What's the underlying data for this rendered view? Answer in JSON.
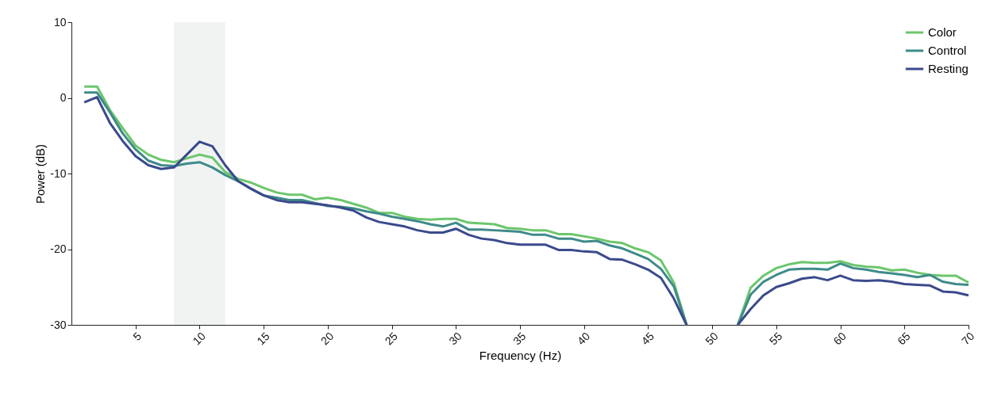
{
  "chart_data": {
    "type": "line",
    "xlabel": "Frequency (Hz)",
    "ylabel": "Power (dB)",
    "x": [
      1,
      2,
      3,
      4,
      5,
      6,
      7,
      8,
      9,
      10,
      11,
      12,
      13,
      14,
      15,
      16,
      17,
      18,
      19,
      20,
      21,
      22,
      23,
      24,
      25,
      26,
      27,
      28,
      29,
      30,
      31,
      32,
      33,
      34,
      35,
      36,
      37,
      38,
      39,
      40,
      41,
      42,
      43,
      44,
      45,
      46,
      47,
      48,
      49,
      50,
      51,
      52,
      53,
      54,
      55,
      56,
      57,
      58,
      59,
      60,
      61,
      62,
      63,
      64,
      65,
      66,
      67,
      68,
      69,
      70
    ],
    "xlim": [
      0,
      70
    ],
    "xticks": [
      5,
      10,
      15,
      20,
      25,
      30,
      35,
      40,
      45,
      50,
      55,
      60,
      65,
      70
    ],
    "ylim": [
      -30,
      10
    ],
    "yticks": [
      -30,
      -20,
      -10,
      0,
      10
    ],
    "grid": false,
    "legend": "top right",
    "bands": [
      {
        "axis": "x",
        "from": 8,
        "to": 12,
        "color": "#f1f3f2"
      }
    ],
    "series": [
      {
        "name": "Color",
        "color": "#6cc66c",
        "values": [
          1.5,
          1.5,
          -1.6,
          -4.0,
          -6.3,
          -7.5,
          -8.2,
          -8.5,
          -8.0,
          -7.5,
          -7.9,
          -9.8,
          -10.7,
          -11.2,
          -11.9,
          -12.5,
          -12.8,
          -12.8,
          -13.4,
          -13.2,
          -13.5,
          -14.0,
          -14.5,
          -15.2,
          -15.2,
          -15.7,
          -16.0,
          -16.1,
          -16.0,
          -16.0,
          -16.5,
          -16.6,
          -16.7,
          -17.2,
          -17.3,
          -17.5,
          -17.5,
          -18.0,
          -18.0,
          -18.3,
          -18.6,
          -19.0,
          -19.2,
          -19.9,
          -20.4,
          -21.5,
          -24.4,
          -30,
          null,
          null,
          null,
          -30,
          -25.1,
          -23.5,
          -22.5,
          -22.0,
          -21.7,
          -21.8,
          -21.8,
          -21.6,
          -22.1,
          -22.3,
          -22.4,
          -22.8,
          -22.7,
          -23.1,
          -23.4,
          -23.5,
          -23.5,
          -24.4
        ]
      },
      {
        "name": "Control",
        "color": "#3f8a8a",
        "values": [
          0.7,
          0.7,
          -1.9,
          -4.7,
          -6.8,
          -8.3,
          -8.9,
          -9.0,
          -8.7,
          -8.5,
          -9.2,
          -10.2,
          -11.0,
          -12.0,
          -12.9,
          -13.2,
          -13.5,
          -13.5,
          -13.9,
          -14.3,
          -14.4,
          -14.6,
          -15.0,
          -15.3,
          -15.7,
          -16.0,
          -16.3,
          -16.7,
          -17.0,
          -16.5,
          -17.4,
          -17.4,
          -17.5,
          -17.6,
          -17.7,
          -18.1,
          -18.1,
          -18.6,
          -18.6,
          -19.0,
          -18.9,
          -19.5,
          -19.9,
          -20.6,
          -21.3,
          -22.6,
          -24.9,
          -30,
          null,
          null,
          null,
          -30,
          -26.0,
          -24.3,
          -23.4,
          -22.7,
          -22.6,
          -22.6,
          -22.7,
          -21.9,
          -22.5,
          -22.7,
          -23.0,
          -23.2,
          -23.4,
          -23.7,
          -23.4,
          -24.3,
          -24.6,
          -24.7
        ]
      },
      {
        "name": "Resting",
        "color": "#3b4a8c",
        "values": [
          -0.6,
          0.1,
          -3.3,
          -5.7,
          -7.7,
          -8.9,
          -9.4,
          -9.2,
          -7.5,
          -5.8,
          -6.4,
          -8.9,
          -11.0,
          -12.0,
          -12.9,
          -13.5,
          -13.8,
          -13.8,
          -14.0,
          -14.2,
          -14.5,
          -14.9,
          -15.8,
          -16.4,
          -16.7,
          -17.0,
          -17.5,
          -17.8,
          -17.8,
          -17.3,
          -18.1,
          -18.6,
          -18.8,
          -19.2,
          -19.4,
          -19.4,
          -19.4,
          -20.1,
          -20.1,
          -20.3,
          -20.4,
          -21.3,
          -21.4,
          -22.0,
          -22.7,
          -23.8,
          -26.5,
          -30,
          null,
          null,
          null,
          -30,
          -27.9,
          -26.1,
          -25.0,
          -24.5,
          -23.9,
          -23.7,
          -24.1,
          -23.5,
          -24.1,
          -24.2,
          -24.1,
          -24.3,
          -24.6,
          -24.7,
          -24.8,
          -25.6,
          -25.7,
          -26.1
        ]
      }
    ]
  }
}
